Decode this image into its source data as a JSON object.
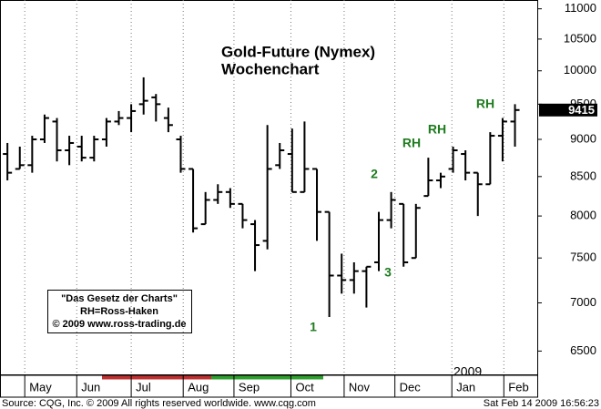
{
  "chart_data": {
    "type": "ohlc",
    "title": "Gold-Future (Nymex)",
    "subtitle": "Wochenchart",
    "color": "#000000",
    "log_scale": true,
    "open": [
      8800,
      8600,
      8650,
      9000,
      9250,
      8850,
      8900,
      8750,
      9000,
      9250,
      9300,
      9500,
      9600,
      9300,
      9000,
      8600,
      7900,
      8200,
      8300,
      8150,
      7900,
      7700,
      8650,
      8800,
      8300,
      8600,
      8050,
      7300,
      7250,
      7350,
      7450,
      7950,
      8150,
      7500,
      8250,
      8450,
      8600,
      8800,
      8550,
      8400,
      9050,
      9250
    ],
    "high": [
      8950,
      8900,
      9050,
      9350,
      9300,
      9050,
      9050,
      9050,
      9300,
      9400,
      9500,
      9900,
      9650,
      9450,
      9050,
      8600,
      8300,
      8400,
      8350,
      8150,
      7950,
      9200,
      8950,
      9150,
      9250,
      8600,
      8050,
      7550,
      7450,
      7400,
      8050,
      8300,
      8150,
      8150,
      8750,
      8550,
      8900,
      8850,
      8550,
      9100,
      9300,
      9500
    ],
    "low": [
      8450,
      8600,
      8550,
      8950,
      8700,
      8650,
      8700,
      8700,
      8900,
      9200,
      9100,
      9350,
      9250,
      9100,
      8550,
      7800,
      7900,
      8150,
      8100,
      7850,
      7350,
      7600,
      8600,
      8300,
      8300,
      7700,
      6850,
      7100,
      7100,
      6950,
      7350,
      7850,
      7400,
      7500,
      8250,
      8350,
      8550,
      8450,
      8000,
      8400,
      8700,
      8900
    ],
    "close": [
      8550,
      8650,
      9000,
      9300,
      8850,
      8950,
      8750,
      9000,
      9250,
      9300,
      9400,
      9550,
      9500,
      9200,
      8600,
      7850,
      8200,
      8300,
      8150,
      7950,
      7650,
      8600,
      8850,
      8300,
      8600,
      8050,
      7300,
      7250,
      7350,
      7400,
      7950,
      8200,
      7450,
      8100,
      8450,
      8500,
      8850,
      8550,
      8400,
      9050,
      9250,
      9415
    ],
    "last_value": 9415,
    "ylim": [
      6280,
      11150
    ],
    "yticks": [
      6500,
      7000,
      7500,
      8000,
      8500,
      9000,
      9500,
      10000,
      10500,
      11000
    ],
    "xlim": [
      -0.6,
      42.8
    ],
    "xticks": [
      {
        "value": 1.4,
        "label": "May"
      },
      {
        "value": 5.6,
        "label": "Jun"
      },
      {
        "value": 10,
        "label": "Jul"
      },
      {
        "value": 14.2,
        "label": "Aug"
      },
      {
        "value": 18.3,
        "label": "Sep"
      },
      {
        "value": 22.9,
        "label": "Oct"
      },
      {
        "value": 27.2,
        "label": "Nov"
      },
      {
        "value": 31.3,
        "label": "Dec"
      },
      {
        "value": 35.9,
        "label": "Jan"
      },
      {
        "value": 40.1,
        "label": "Feb"
      }
    ],
    "year_label": "2009",
    "annotations": [
      {
        "text": "1",
        "color": "#1e7b1e"
      },
      {
        "text": "2",
        "color": "#1e7b1e"
      },
      {
        "text": "3",
        "color": "#1e7b1e"
      },
      {
        "text": "RH",
        "color": "#1e7b1e"
      },
      {
        "text": "RH",
        "color": "#1e7b1e"
      },
      {
        "text": "RH",
        "color": "#1e7b1e"
      }
    ],
    "note_lines": [
      "\"Das Gesetz der Charts\"",
      "RH=Ross-Haken",
      "© 2009 www.ross-trading.de"
    ],
    "source": "Source: CQG, Inc. © 2009 All rights reserved worldwide. www.cqg.com",
    "timestamp": "Sat Feb 14 2009 16:56:23"
  }
}
